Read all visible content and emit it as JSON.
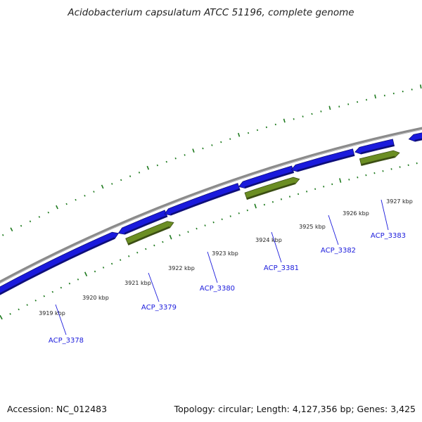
{
  "title": "Acidobacterium capsulatum ATCC 51196, complete genome",
  "footer": {
    "accession": "Accession: NC_012483",
    "summary": "Topology: circular; Length: 4,127,356 bp; Genes: 3,425"
  },
  "colors": {
    "background": "#ffffff",
    "backbone": "#8a8a8a",
    "gene_forward": "#1a1adc",
    "gene_other": "#6b8e23",
    "ticks": "#1e7a1e",
    "gene_label": "#1a1adc"
  },
  "scale_ticks": [
    {
      "label": "3919 kbp"
    },
    {
      "label": "3920 kbp"
    },
    {
      "label": "3921 kbp"
    },
    {
      "label": "3922 kbp"
    },
    {
      "label": "3923 kbp"
    },
    {
      "label": "3924 kbp"
    },
    {
      "label": "3925 kbp"
    },
    {
      "label": "3926 kbp"
    },
    {
      "label": "3927 kbp"
    }
  ],
  "genes": [
    {
      "name": "ACP_3378"
    },
    {
      "name": "ACP_3379"
    },
    {
      "name": "ACP_3380"
    },
    {
      "name": "ACP_3381"
    },
    {
      "name": "ACP_3382"
    },
    {
      "name": "ACP_3383"
    }
  ]
}
